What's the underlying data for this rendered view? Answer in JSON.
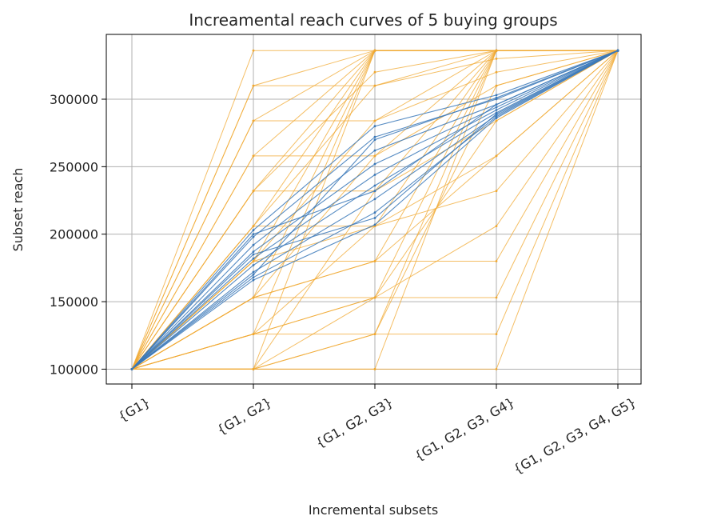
{
  "chart_data": {
    "type": "line",
    "title": "Increamental reach curves of 5 buying groups",
    "xlabel": "Incremental subsets",
    "ylabel": "Subset reach",
    "categories": [
      "{G1}",
      "{G1, G2}",
      "{G1, G2, G3}",
      "{G1, G2, G3, G4}",
      "{G1, G2, G3, G4, G5}"
    ],
    "ylim": [
      89000,
      348000
    ],
    "yticks": [
      100000,
      150000,
      200000,
      250000,
      300000
    ],
    "ytick_labels": [
      "100000",
      "150000",
      "200000",
      "250000",
      "300000"
    ],
    "grid": true,
    "colors": {
      "orange": "#f0a830",
      "blue": "#3a78b8",
      "grid": "#b0b0b0",
      "axis": "#000000"
    },
    "series_groups": [
      {
        "color": "orange",
        "description_values": "upper and lower envelope reach curves",
        "curves": [
          [
            100000,
            336000,
            336000,
            336000,
            336000
          ],
          [
            100000,
            310000,
            336000,
            336000,
            336000
          ],
          [
            100000,
            284000,
            336000,
            336000,
            336000
          ],
          [
            100000,
            258000,
            336000,
            336000,
            336000
          ],
          [
            100000,
            232000,
            336000,
            336000,
            336000
          ],
          [
            100000,
            206000,
            336000,
            336000,
            336000
          ],
          [
            100000,
            180000,
            336000,
            336000,
            336000
          ],
          [
            100000,
            153000,
            336000,
            336000,
            336000
          ],
          [
            100000,
            126000,
            336000,
            336000,
            336000
          ],
          [
            100000,
            100000,
            336000,
            336000,
            336000
          ],
          [
            100000,
            310000,
            310000,
            336000,
            336000
          ],
          [
            100000,
            284000,
            284000,
            336000,
            336000
          ],
          [
            100000,
            258000,
            258000,
            336000,
            336000
          ],
          [
            100000,
            232000,
            232000,
            336000,
            336000
          ],
          [
            100000,
            206000,
            206000,
            336000,
            336000
          ],
          [
            100000,
            180000,
            180000,
            336000,
            336000
          ],
          [
            100000,
            153000,
            153000,
            336000,
            336000
          ],
          [
            100000,
            126000,
            126000,
            336000,
            336000
          ],
          [
            100000,
            100000,
            100000,
            336000,
            336000
          ],
          [
            100000,
            100000,
            126000,
            310000,
            336000
          ],
          [
            100000,
            126000,
            153000,
            284000,
            336000
          ],
          [
            100000,
            153000,
            180000,
            258000,
            336000
          ],
          [
            100000,
            180000,
            206000,
            232000,
            336000
          ],
          [
            100000,
            100000,
            100000,
            100000,
            336000
          ],
          [
            100000,
            100000,
            126000,
            126000,
            336000
          ],
          [
            100000,
            126000,
            153000,
            153000,
            336000
          ],
          [
            100000,
            153000,
            180000,
            180000,
            336000
          ],
          [
            100000,
            100000,
            153000,
            206000,
            336000
          ],
          [
            100000,
            126000,
            206000,
            258000,
            336000
          ],
          [
            100000,
            100000,
            232000,
            284000,
            336000
          ],
          [
            100000,
            153000,
            258000,
            310000,
            336000
          ],
          [
            100000,
            180000,
            284000,
            320000,
            336000
          ],
          [
            100000,
            206000,
            310000,
            330000,
            336000
          ],
          [
            100000,
            232000,
            320000,
            336000,
            336000
          ]
        ]
      },
      {
        "color": "blue",
        "description_values": "central reach curves",
        "curves": [
          [
            100000,
            203000,
            280000,
            303000,
            336000
          ],
          [
            100000,
            198000,
            272000,
            300000,
            336000
          ],
          [
            100000,
            192000,
            262000,
            296000,
            336000
          ],
          [
            100000,
            187000,
            252000,
            294000,
            336000
          ],
          [
            100000,
            182000,
            244000,
            292000,
            336000
          ],
          [
            100000,
            177000,
            236000,
            290000,
            336000
          ],
          [
            100000,
            172000,
            226000,
            288000,
            336000
          ],
          [
            100000,
            168000,
            216000,
            287000,
            336000
          ],
          [
            100000,
            166000,
            207000,
            286000,
            336000
          ],
          [
            100000,
            200000,
            232000,
            296000,
            336000
          ],
          [
            100000,
            170000,
            270000,
            301000,
            336000
          ],
          [
            100000,
            185000,
            212000,
            289000,
            336000
          ]
        ]
      }
    ]
  }
}
